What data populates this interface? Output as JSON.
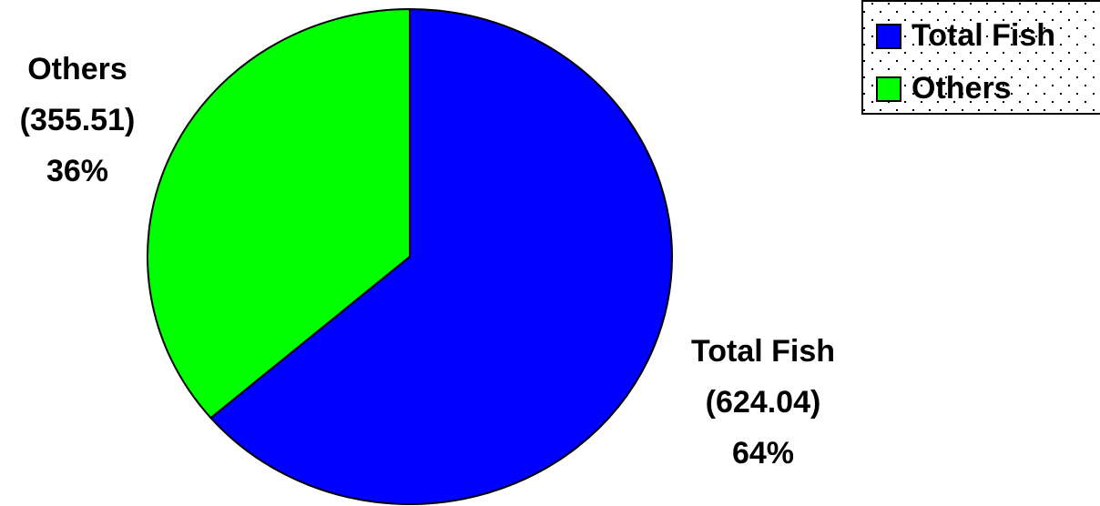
{
  "chart_data": {
    "type": "pie",
    "categories": [
      "Total Fish",
      "Others"
    ],
    "values": [
      624.04,
      355.51
    ],
    "value_labels": [
      "(624.04)",
      "(355.51)"
    ],
    "percentages": [
      64,
      36
    ],
    "percentage_labels": [
      "64%",
      "36%"
    ],
    "colors": [
      "#0000ff",
      "#00ff00"
    ],
    "legend": "top-right"
  }
}
